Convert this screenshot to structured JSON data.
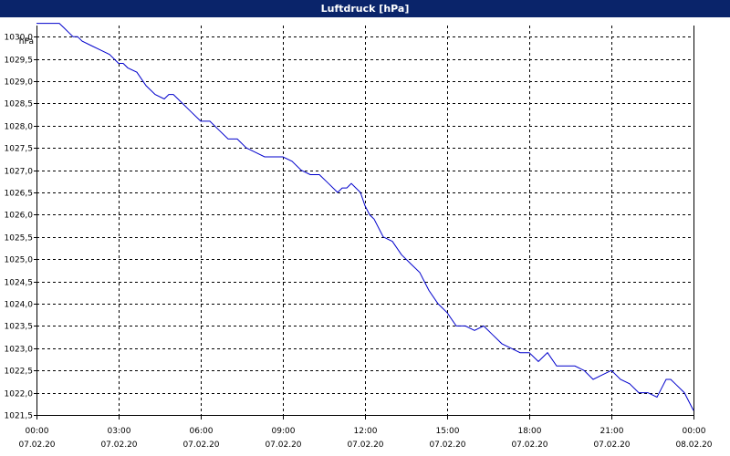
{
  "window": {
    "title": "Luftdruck [hPa]"
  },
  "colors": {
    "title_bar": "#0a246a",
    "line": "#0000cc",
    "background": "#ffffff"
  },
  "chart_data": {
    "type": "line",
    "title": "Luftdruck [hPa]",
    "y_unit_label": "hPa",
    "xlabel": "",
    "ylabel": "",
    "grid": true,
    "xlim_hours": [
      0,
      24
    ],
    "ylim": [
      1021.5,
      1030.25
    ],
    "y_ticks": [
      "1030,0",
      "1029,5",
      "1029,0",
      "1028,5",
      "1028,0",
      "1027,5",
      "1027,0",
      "1026,5",
      "1026,0",
      "1025,5",
      "1025,0",
      "1024,5",
      "1024,0",
      "1023,5",
      "1023,0",
      "1022,5",
      "1022,0",
      "1021,5"
    ],
    "y_tick_values": [
      1030.0,
      1029.5,
      1029.0,
      1028.5,
      1028.0,
      1027.5,
      1027.0,
      1026.5,
      1026.0,
      1025.5,
      1025.0,
      1024.5,
      1024.0,
      1023.5,
      1023.0,
      1022.5,
      1022.0,
      1021.5
    ],
    "x_ticks": [
      {
        "time": "00:00",
        "date": "07.02.20"
      },
      {
        "time": "03:00",
        "date": "07.02.20"
      },
      {
        "time": "06:00",
        "date": "07.02.20"
      },
      {
        "time": "09:00",
        "date": "07.02.20"
      },
      {
        "time": "12:00",
        "date": "07.02.20"
      },
      {
        "time": "15:00",
        "date": "07.02.20"
      },
      {
        "time": "18:00",
        "date": "07.02.20"
      },
      {
        "time": "21:00",
        "date": "07.02.20"
      },
      {
        "time": "00:00",
        "date": "08.02.20"
      }
    ],
    "series": [
      {
        "x": [
          "00:00",
          "00:20",
          "00:40",
          "00:50",
          "01:00",
          "01:10",
          "01:20",
          "01:30",
          "01:40",
          "02:00",
          "02:20",
          "02:40",
          "03:00",
          "03:10",
          "03:20",
          "03:40",
          "04:00",
          "04:20",
          "04:40",
          "04:50",
          "05:00",
          "05:20",
          "05:40",
          "06:00",
          "06:20",
          "06:40",
          "07:00",
          "07:20",
          "07:40",
          "08:00",
          "08:20",
          "08:40",
          "09:00",
          "09:20",
          "09:40",
          "10:00",
          "10:20",
          "10:40",
          "11:00",
          "11:10",
          "11:20",
          "11:30",
          "11:40",
          "11:50",
          "12:00",
          "12:10",
          "12:20",
          "12:40",
          "13:00",
          "13:20",
          "13:40",
          "14:00",
          "14:20",
          "14:40",
          "15:00",
          "15:20",
          "15:40",
          "16:00",
          "16:20",
          "16:40",
          "17:00",
          "17:20",
          "17:40",
          "18:00",
          "18:20",
          "18:40",
          "19:00",
          "19:20",
          "19:40",
          "20:00",
          "20:20",
          "20:40",
          "21:00",
          "21:20",
          "21:40",
          "22:00",
          "22:20",
          "22:40",
          "22:50",
          "23:00",
          "23:10",
          "23:20",
          "23:40",
          "23:50",
          "24:00"
        ],
        "values": [
          1030.3,
          1030.3,
          1030.3,
          1030.3,
          1030.2,
          1030.1,
          1030.0,
          1030.0,
          1029.9,
          1029.8,
          1029.7,
          1029.6,
          1029.4,
          1029.4,
          1029.3,
          1029.2,
          1028.9,
          1028.7,
          1028.6,
          1028.7,
          1028.7,
          1028.5,
          1028.3,
          1028.1,
          1028.1,
          1027.9,
          1027.7,
          1027.7,
          1027.5,
          1027.4,
          1027.3,
          1027.3,
          1027.3,
          1027.2,
          1027.0,
          1026.9,
          1026.9,
          1026.7,
          1026.5,
          1026.6,
          1026.6,
          1026.7,
          1026.6,
          1026.5,
          1026.2,
          1026.0,
          1025.9,
          1025.5,
          1025.4,
          1025.1,
          1024.9,
          1024.7,
          1024.3,
          1024.0,
          1023.8,
          1023.5,
          1023.5,
          1023.4,
          1023.5,
          1023.3,
          1023.1,
          1023.0,
          1022.9,
          1022.9,
          1022.7,
          1022.9,
          1022.6,
          1022.6,
          1022.6,
          1022.5,
          1022.3,
          1022.4,
          1022.5,
          1022.3,
          1022.2,
          1022.0,
          1022.0,
          1021.9,
          1022.1,
          1022.3,
          1022.3,
          1022.2,
          1022.0,
          1021.8,
          1021.6
        ]
      }
    ]
  }
}
